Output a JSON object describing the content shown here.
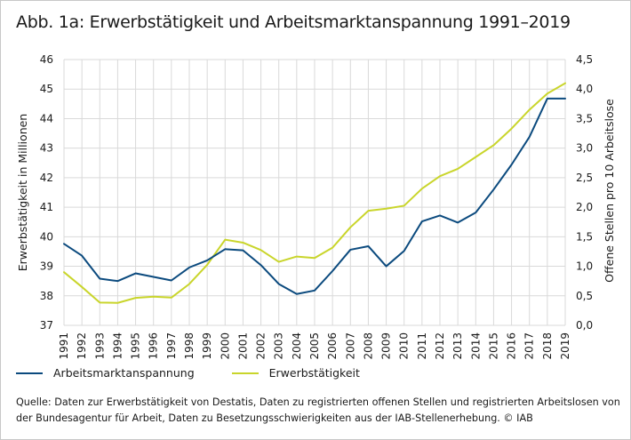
{
  "title": "Abb. 1a: Erwerbstätigkeit und Arbeitsmarktanspannung 1991–2019",
  "colors": {
    "arbeitsmarktanspannung": "#0b4a7e",
    "erwerbstaetigkeit": "#c9d52b",
    "grid": "#d9d9d9"
  },
  "legend": {
    "series1": "Arbeitsmarktanspannung",
    "series2": "Erwerbstätigkeit"
  },
  "source": "Quelle: Daten zur Erwerbstätigkeit von Destatis, Daten zu registrierten offenen Stellen und registrierten Arbeitslosen von der Bundesagentur für Arbeit, Daten zu Besetzungsschwierigkeiten aus der IAB-Stellenerhebung. © IAB",
  "chart_data": {
    "type": "line",
    "title": "Abb. 1a: Erwerbstätigkeit und Arbeitsmarktanspannung 1991–2019",
    "x": [
      "1991",
      "1992",
      "1993",
      "1994",
      "1995",
      "1996",
      "1997",
      "1998",
      "1999",
      "2000",
      "2001",
      "2002",
      "2003",
      "2004",
      "2005",
      "2006",
      "2007",
      "2008",
      "2009",
      "2010",
      "2011",
      "2012",
      "2013",
      "2014",
      "2015",
      "2016",
      "2017",
      "2018",
      "2019"
    ],
    "ylabel": "Erwerbstätigkeit in Millionen",
    "y2label": "Offene Stellen pro 10 Arbeitslose",
    "ylim": [
      37,
      46
    ],
    "y2lim": [
      0,
      4.5
    ],
    "yticks": [
      "37",
      "38",
      "39",
      "40",
      "41",
      "42",
      "43",
      "44",
      "45",
      "46"
    ],
    "y2ticks": [
      "0,0",
      "0,5",
      "1,0",
      "1,5",
      "2,0",
      "2,5",
      "3,0",
      "3,5",
      "4,0",
      "4,5"
    ],
    "grid": true,
    "legend_position": "bottom",
    "series": [
      {
        "name": "Arbeitsmarktanspannung",
        "axis": "right",
        "values": [
          1.38,
          1.18,
          0.79,
          0.75,
          0.88,
          0.82,
          0.76,
          0.98,
          1.1,
          1.29,
          1.27,
          1.02,
          0.7,
          0.53,
          0.59,
          0.92,
          1.28,
          1.34,
          1.0,
          1.26,
          1.76,
          1.86,
          1.74,
          1.91,
          2.3,
          2.72,
          3.19,
          3.84,
          3.84
        ]
      },
      {
        "name": "Erwerbstätigkeit",
        "axis": "left",
        "values": [
          38.8,
          38.3,
          37.77,
          37.76,
          37.93,
          37.97,
          37.94,
          38.4,
          39.05,
          39.9,
          39.8,
          39.55,
          39.15,
          39.33,
          39.28,
          39.63,
          40.32,
          40.88,
          40.95,
          41.05,
          41.63,
          42.05,
          42.3,
          42.7,
          43.1,
          43.66,
          44.3,
          44.85,
          45.2
        ]
      }
    ]
  }
}
